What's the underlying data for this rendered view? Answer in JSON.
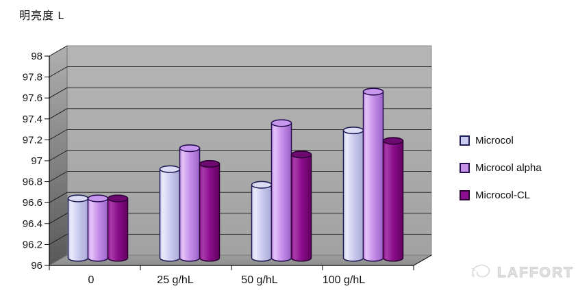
{
  "title": "明亮度 L",
  "watermark": {
    "brand": "LAFFORT"
  },
  "chart_data": {
    "type": "bar",
    "subtype": "3d-cylinder-clustered",
    "title": "明亮度 L",
    "xlabel": "",
    "ylabel": "明亮度 L",
    "ylim": [
      96,
      98
    ],
    "ytick_step": 0.2,
    "grid": true,
    "legend_position": "right",
    "categories": [
      "0",
      "25 g/hL",
      "50 g/hL",
      "100 g/hL"
    ],
    "series": [
      {
        "name": "Microcol",
        "values": [
          96.64,
          96.92,
          96.77,
          97.29
        ],
        "color": {
          "base": "#ccccf0",
          "light": "#ecebfb",
          "dark": "#a9a9d6",
          "top": "#dcdcf5",
          "stroke": "#1c1c55"
        }
      },
      {
        "name": "Microcol alpha",
        "values": [
          96.64,
          97.12,
          97.36,
          97.66
        ],
        "color": {
          "base": "#c791ea",
          "light": "#e4c4f8",
          "dark": "#9c62c8",
          "top": "#c897ee",
          "stroke": "#250e50"
        }
      },
      {
        "name": "Microcol-CL",
        "values": [
          96.64,
          96.97,
          97.06,
          97.19
        ],
        "color": {
          "base": "#8b0f8d",
          "light": "#a93cab",
          "dark": "#63005f",
          "top": "#6d0a70",
          "stroke": "#2a0033"
        }
      }
    ],
    "colors": {
      "back_wall_top": "#b5b5b5",
      "back_wall_bottom": "#a2a2a2",
      "left_wall_top": "#b0b0b0",
      "left_wall_bottom": "#585858",
      "floor_top": "#9e9e9e",
      "floor_bottom": "#8e8e8e",
      "gridline": "#1a1a1a",
      "axis_text": "#111111"
    }
  }
}
